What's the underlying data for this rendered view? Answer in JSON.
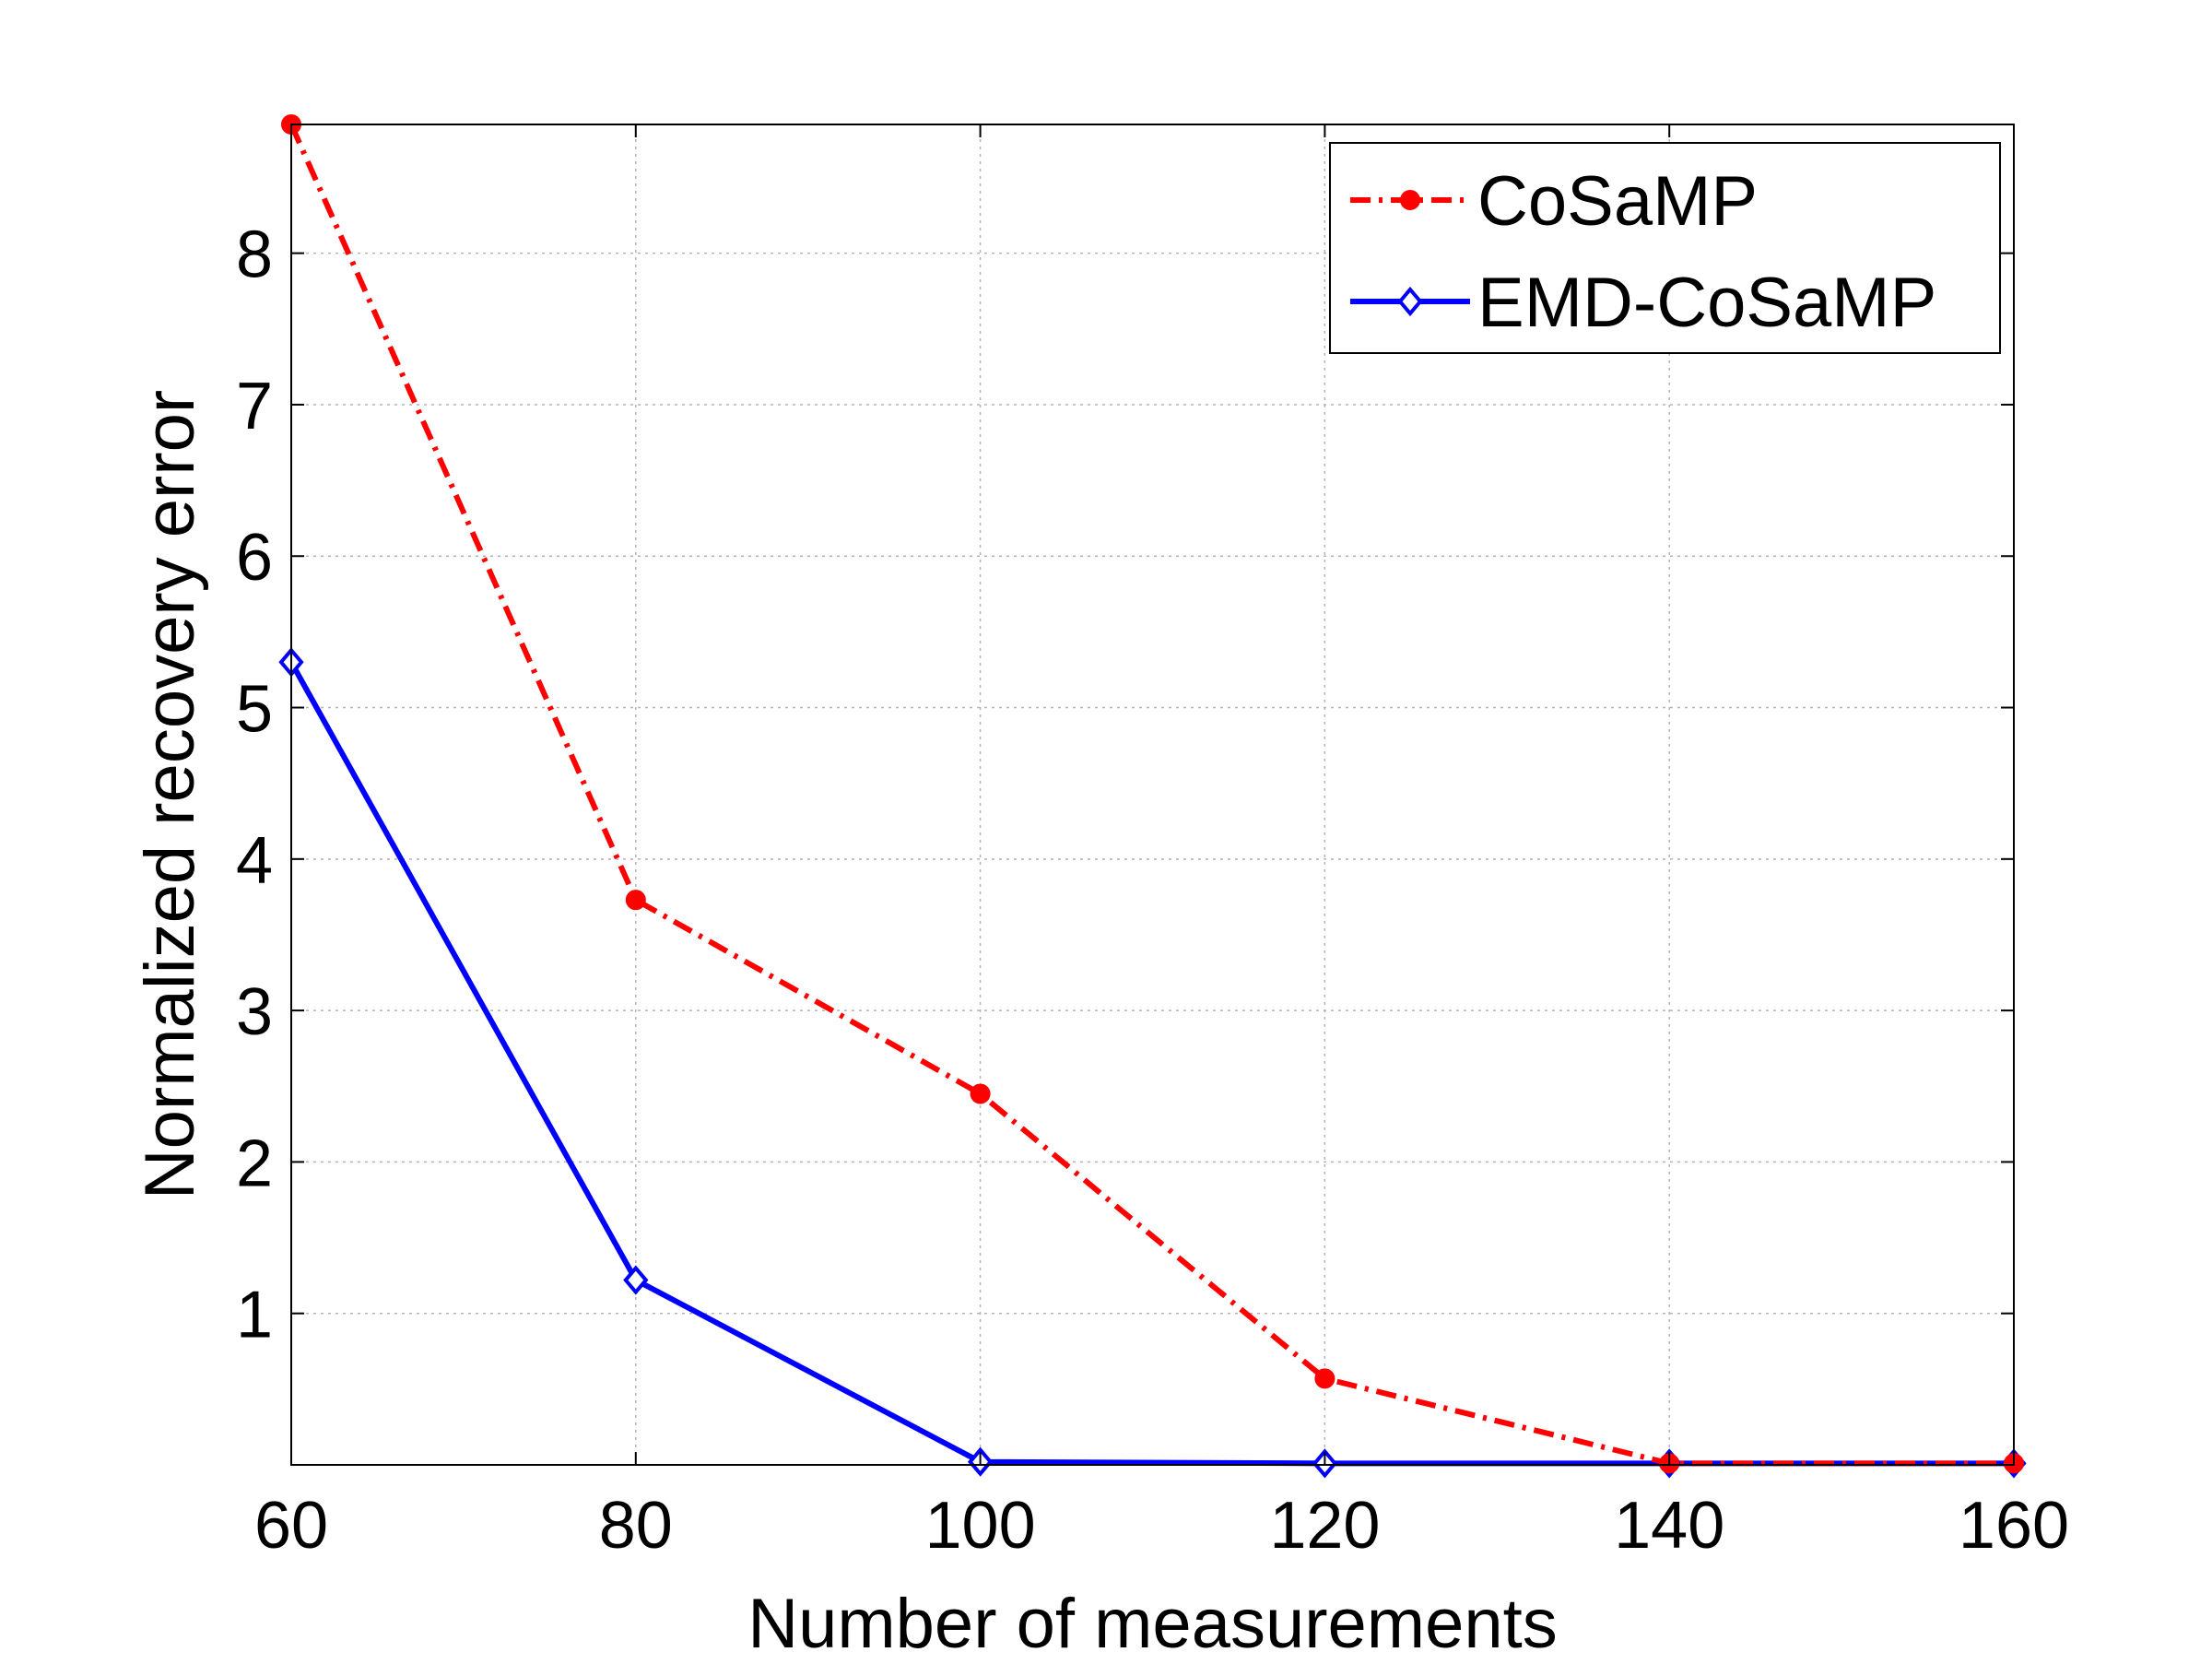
{
  "chart_data": {
    "type": "line",
    "title": "",
    "xlabel": "Number of measurements",
    "ylabel": "Normalized recovery error",
    "x": [
      60,
      80,
      100,
      120,
      140,
      160
    ],
    "xlim": [
      60,
      160
    ],
    "ylim": [
      0,
      8.85
    ],
    "xticks": [
      60,
      80,
      100,
      120,
      140,
      160
    ],
    "yticks": [
      1,
      2,
      3,
      4,
      5,
      6,
      7,
      8
    ],
    "xtick_labels": [
      "60",
      "80",
      "100",
      "120",
      "140",
      "160"
    ],
    "ytick_labels": [
      "1",
      "2",
      "3",
      "4",
      "5",
      "6",
      "7",
      "8"
    ],
    "grid": true,
    "legend_position": "top-right",
    "series": [
      {
        "name": "CoSaMP",
        "values": [
          8.85,
          3.73,
          2.45,
          0.57,
          0.01,
          0.01
        ],
        "color": "#ff0000",
        "line_style": "dash-dot",
        "marker": "circle"
      },
      {
        "name": "EMD-CoSaMP",
        "values": [
          5.3,
          1.22,
          0.02,
          0.01,
          0.01,
          0.01
        ],
        "color": "#0000ff",
        "line_style": "solid",
        "marker": "diamond"
      }
    ]
  }
}
